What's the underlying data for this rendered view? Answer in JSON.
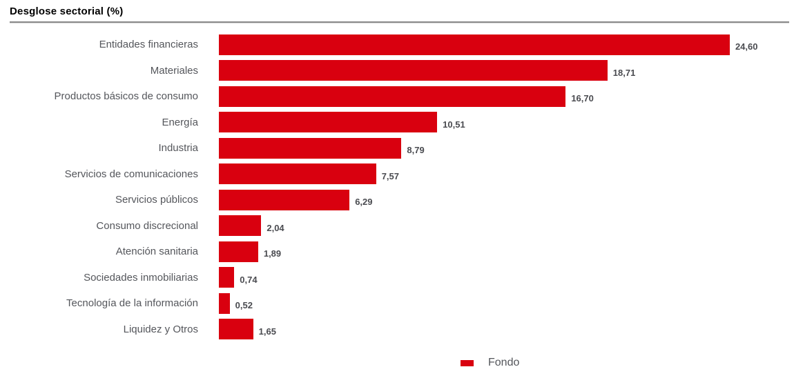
{
  "chart_data": {
    "type": "bar",
    "orientation": "horizontal",
    "title": "Desglose sectorial (%)",
    "categories": [
      "Entidades financieras",
      "Materiales",
      "Productos básicos de consumo",
      "Energía",
      "Industria",
      "Servicios de comunicaciones",
      "Servicios públicos",
      "Consumo discrecional",
      "Atención sanitaria",
      "Sociedades inmobiliarias",
      "Tecnología de la información",
      "Liquidez y Otros"
    ],
    "values": [
      24.6,
      18.71,
      16.7,
      10.51,
      8.79,
      7.57,
      6.29,
      2.04,
      1.89,
      0.74,
      0.52,
      1.65
    ],
    "value_labels": [
      "24,60",
      "18,71",
      "16,70",
      "10,51",
      "8,79",
      "7,57",
      "6,29",
      "2,04",
      "1,89",
      "0,74",
      "0,52",
      "1,65"
    ],
    "xlim": [
      0,
      27.5
    ],
    "grid": false,
    "legend": [
      {
        "name": "Fondo",
        "color": "#d9000f"
      }
    ],
    "legend_position": "bottom",
    "colors": {
      "bar": "#d9000f",
      "category_label": "#54565b",
      "value_label": "#4a4b50",
      "title": "#000000"
    }
  }
}
